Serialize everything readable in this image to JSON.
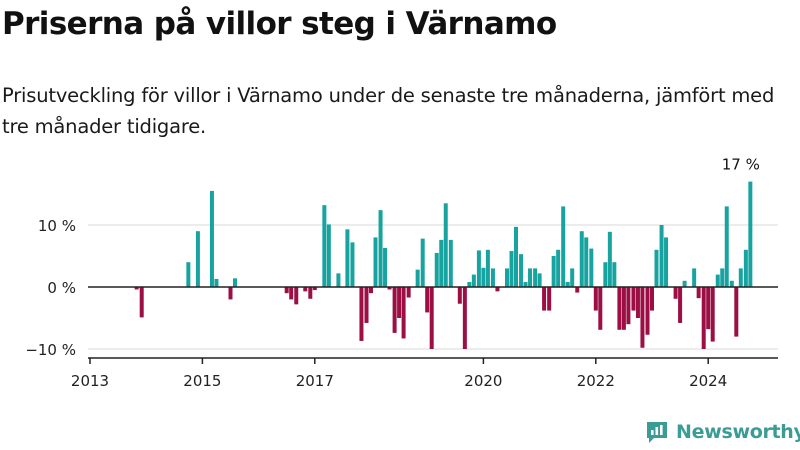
{
  "header": {
    "title": "Priserna på villor steg i Värnamo",
    "subtitle": "Prisutveckling för villor i Värnamo under de senaste tre månaderna, jämfört med tre månader tidigare."
  },
  "brand": {
    "name": "Newsworthy",
    "color": "#3a9c95"
  },
  "colors": {
    "positive": "#17a4a0",
    "negative": "#9b0f45",
    "axis": "#222222",
    "grid": "#d8d8d8"
  },
  "chart_data": {
    "type": "bar",
    "title": "",
    "xlabel": "",
    "ylabel": "",
    "x_unit": "year (decimal)",
    "xlim": [
      2013.0,
      2025.25
    ],
    "ylim": [
      -11,
      17.5
    ],
    "x_ticks": [
      2013,
      2015,
      2017,
      2020,
      2022,
      2024
    ],
    "x_tick_labels": [
      "2013",
      "2015",
      "2017",
      "2020",
      "2022",
      "2024"
    ],
    "y_ticks": [
      -10,
      0,
      10
    ],
    "y_tick_labels": [
      "−10 %",
      "0 %",
      "10 %"
    ],
    "annotation": {
      "text": "17 %",
      "x": 2024.58,
      "y": 17
    },
    "grid": false,
    "legend": "none",
    "values_unit": "percent",
    "values": [
      {
        "x": 2013.83,
        "y": -0.4
      },
      {
        "x": 2013.92,
        "y": -4.9
      },
      {
        "x": 2014.75,
        "y": 4.0
      },
      {
        "x": 2014.92,
        "y": 9.0
      },
      {
        "x": 2015.17,
        "y": 15.5
      },
      {
        "x": 2015.25,
        "y": 1.3
      },
      {
        "x": 2015.5,
        "y": -2.0
      },
      {
        "x": 2015.58,
        "y": 1.4
      },
      {
        "x": 2016.5,
        "y": -1.0
      },
      {
        "x": 2016.58,
        "y": -2.0
      },
      {
        "x": 2016.67,
        "y": -2.8
      },
      {
        "x": 2016.83,
        "y": -0.7
      },
      {
        "x": 2016.92,
        "y": -1.9
      },
      {
        "x": 2017.0,
        "y": -0.5
      },
      {
        "x": 2017.17,
        "y": 13.2
      },
      {
        "x": 2017.25,
        "y": 10.1
      },
      {
        "x": 2017.42,
        "y": 2.2
      },
      {
        "x": 2017.58,
        "y": 9.3
      },
      {
        "x": 2017.67,
        "y": 7.2
      },
      {
        "x": 2017.83,
        "y": -8.7
      },
      {
        "x": 2017.92,
        "y": -5.8
      },
      {
        "x": 2018.0,
        "y": -1.0
      },
      {
        "x": 2018.08,
        "y": 8.0
      },
      {
        "x": 2018.17,
        "y": 12.4
      },
      {
        "x": 2018.25,
        "y": 6.3
      },
      {
        "x": 2018.33,
        "y": -0.4
      },
      {
        "x": 2018.42,
        "y": -7.4
      },
      {
        "x": 2018.5,
        "y": -5.0
      },
      {
        "x": 2018.58,
        "y": -8.3
      },
      {
        "x": 2018.67,
        "y": -1.7
      },
      {
        "x": 2018.83,
        "y": 2.8
      },
      {
        "x": 2018.92,
        "y": 7.8
      },
      {
        "x": 2019.0,
        "y": -4.1
      },
      {
        "x": 2019.08,
        "y": -10.0
      },
      {
        "x": 2019.17,
        "y": 5.5
      },
      {
        "x": 2019.25,
        "y": 7.6
      },
      {
        "x": 2019.33,
        "y": 13.5
      },
      {
        "x": 2019.42,
        "y": 7.6
      },
      {
        "x": 2019.58,
        "y": -2.7
      },
      {
        "x": 2019.67,
        "y": -10.0
      },
      {
        "x": 2019.75,
        "y": 0.8
      },
      {
        "x": 2019.83,
        "y": 2.0
      },
      {
        "x": 2019.92,
        "y": 5.9
      },
      {
        "x": 2020.0,
        "y": 3.1
      },
      {
        "x": 2020.08,
        "y": 6.0
      },
      {
        "x": 2020.17,
        "y": 3.0
      },
      {
        "x": 2020.25,
        "y": -0.7
      },
      {
        "x": 2020.42,
        "y": 3.0
      },
      {
        "x": 2020.5,
        "y": 5.8
      },
      {
        "x": 2020.58,
        "y": 9.7
      },
      {
        "x": 2020.67,
        "y": 5.3
      },
      {
        "x": 2020.75,
        "y": 0.8
      },
      {
        "x": 2020.83,
        "y": 3.0
      },
      {
        "x": 2020.92,
        "y": 3.0
      },
      {
        "x": 2021.0,
        "y": 2.2
      },
      {
        "x": 2021.08,
        "y": -3.8
      },
      {
        "x": 2021.17,
        "y": -3.8
      },
      {
        "x": 2021.25,
        "y": 5.0
      },
      {
        "x": 2021.33,
        "y": 6.0
      },
      {
        "x": 2021.42,
        "y": 13.0
      },
      {
        "x": 2021.5,
        "y": 0.8
      },
      {
        "x": 2021.58,
        "y": 3.0
      },
      {
        "x": 2021.67,
        "y": -0.9
      },
      {
        "x": 2021.75,
        "y": 9.0
      },
      {
        "x": 2021.83,
        "y": 8.0
      },
      {
        "x": 2021.92,
        "y": 6.2
      },
      {
        "x": 2022.0,
        "y": -3.8
      },
      {
        "x": 2022.08,
        "y": -6.9
      },
      {
        "x": 2022.17,
        "y": 4.0
      },
      {
        "x": 2022.25,
        "y": 8.9
      },
      {
        "x": 2022.33,
        "y": 4.0
      },
      {
        "x": 2022.42,
        "y": -6.9
      },
      {
        "x": 2022.5,
        "y": -6.9
      },
      {
        "x": 2022.58,
        "y": -6.0
      },
      {
        "x": 2022.67,
        "y": -3.8
      },
      {
        "x": 2022.75,
        "y": -5.0
      },
      {
        "x": 2022.83,
        "y": -9.8
      },
      {
        "x": 2022.92,
        "y": -7.7
      },
      {
        "x": 2023.0,
        "y": -3.8
      },
      {
        "x": 2023.08,
        "y": 6.0
      },
      {
        "x": 2023.17,
        "y": 10.0
      },
      {
        "x": 2023.25,
        "y": 8.0
      },
      {
        "x": 2023.42,
        "y": -1.9
      },
      {
        "x": 2023.5,
        "y": -5.8
      },
      {
        "x": 2023.58,
        "y": 1.0
      },
      {
        "x": 2023.75,
        "y": 3.0
      },
      {
        "x": 2023.83,
        "y": -1.8
      },
      {
        "x": 2023.92,
        "y": -10.0
      },
      {
        "x": 2024.0,
        "y": -6.8
      },
      {
        "x": 2024.08,
        "y": -8.8
      },
      {
        "x": 2024.17,
        "y": 2.0
      },
      {
        "x": 2024.25,
        "y": 3.0
      },
      {
        "x": 2024.33,
        "y": 13.0
      },
      {
        "x": 2024.42,
        "y": 1.0
      },
      {
        "x": 2024.5,
        "y": -8.0
      },
      {
        "x": 2024.58,
        "y": 3.0
      },
      {
        "x": 2024.67,
        "y": 6.0
      },
      {
        "x": 2024.75,
        "y": 17.0
      }
    ]
  }
}
